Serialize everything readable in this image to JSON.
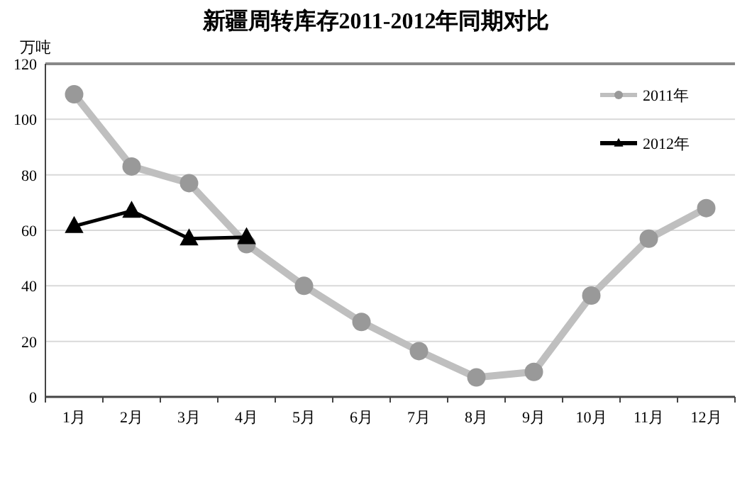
{
  "chart_data": {
    "type": "line",
    "title": "新疆周转库存2011-2012年同期对比",
    "ylabel": "万吨",
    "categories": [
      "1月",
      "2月",
      "3月",
      "4月",
      "5月",
      "6月",
      "7月",
      "8月",
      "9月",
      "10月",
      "11月",
      "12月"
    ],
    "series": [
      {
        "name": "2011年",
        "color": "#bfbfbf",
        "marker": "circle",
        "values": [
          109,
          83,
          77,
          55,
          40,
          27,
          16.5,
          7,
          9,
          36.5,
          57,
          68
        ]
      },
      {
        "name": "2012年",
        "color": "#000000",
        "marker": "triangle",
        "values": [
          61.5,
          67,
          57,
          57.5,
          null,
          null,
          null,
          null,
          null,
          null,
          null,
          null
        ]
      }
    ],
    "ylim": [
      0,
      120
    ],
    "yticks": [
      0,
      20,
      40,
      60,
      80,
      100,
      120
    ],
    "grid": "y",
    "legend": "top right"
  }
}
